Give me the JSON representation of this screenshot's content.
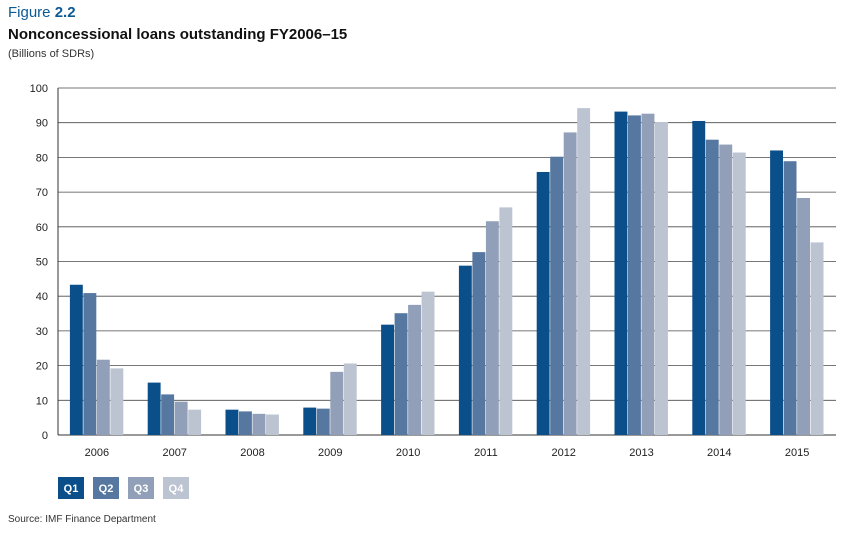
{
  "figure": {
    "prefix": "Figure",
    "number": "2.2"
  },
  "source": "Source: IMF Finance Department",
  "colors": {
    "q1": "#0b4f8a",
    "q2": "#5577a0",
    "q3": "#919fb8",
    "q4": "#bcc3d1",
    "accent": "#0b5a94"
  },
  "chart_data": {
    "type": "bar",
    "title": "Nonconcessional loans outstanding FY2006–15",
    "subtitle": "(Billions of SDRs)",
    "categories": [
      "2006",
      "2007",
      "2008",
      "2009",
      "2010",
      "2011",
      "2012",
      "2013",
      "2014",
      "2015"
    ],
    "series": [
      {
        "name": "Q1",
        "values": [
          43.3,
          15.1,
          7.3,
          7.9,
          31.8,
          48.8,
          75.8,
          93.2,
          90.5,
          82.0
        ]
      },
      {
        "name": "Q2",
        "values": [
          40.9,
          11.7,
          6.8,
          7.6,
          35.1,
          52.7,
          80.2,
          92.1,
          85.1,
          78.9
        ]
      },
      {
        "name": "Q3",
        "values": [
          21.7,
          9.6,
          6.1,
          18.2,
          37.5,
          61.6,
          87.2,
          92.6,
          83.7,
          68.3
        ]
      },
      {
        "name": "Q4",
        "values": [
          19.2,
          7.3,
          5.9,
          20.6,
          41.3,
          65.6,
          94.2,
          90.2,
          81.4,
          55.5
        ]
      }
    ],
    "ylim": [
      0,
      100
    ],
    "yticks": [
      0,
      10,
      20,
      30,
      40,
      50,
      60,
      70,
      80,
      90,
      100
    ],
    "grid": true,
    "legend": "bottom-left"
  }
}
